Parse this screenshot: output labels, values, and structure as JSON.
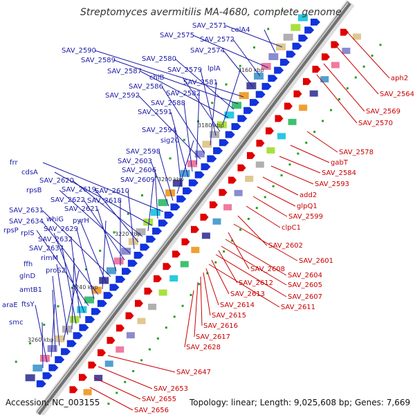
{
  "title": "Streptomyces avermitilis MA-4680, complete genome",
  "accession": "Accession: NC_003155",
  "topology": "Topology: linear; Length: 9,025,608 bp; Genes: 7,669",
  "ticks": [
    "3160 kbp",
    "3180 kbp",
    "3200 kbp",
    "3220 kbp",
    "3240 kbp",
    "3260 kbp"
  ],
  "left_labels": [
    "SAV_2571",
    "celA4",
    "SAV_2575",
    "SAV_2572",
    "SAV_2574",
    "SAV_2590",
    "SAV_2589",
    "SAV_2580",
    "SAV_2587",
    "lplA",
    "chiB",
    "SAV_2579",
    "SAV_2581",
    "SAV_2586",
    "SAV_2592",
    "SAV_2582",
    "SAV_2588",
    "SAV_2591",
    "SAV_2594",
    "sig20",
    "SAV_2598",
    "SAV_2603",
    "frr",
    "SAV_2606",
    "cdsA",
    "SAV_2609",
    "SAV_2620",
    "SAV_2619",
    "SAV_2610",
    "rpsB",
    "SAV_2622",
    "SAV_2618",
    "SAV_2621",
    "SAV_2631",
    "whiG",
    "pyrH",
    "SAV_2634",
    "SAV_2629",
    "rpsP",
    "rplS",
    "SAV_2632",
    "SAV_2637",
    "rimM",
    "ffh",
    "proS2",
    "glnD",
    "amtB1",
    "ftsY",
    "araE",
    "smc"
  ],
  "right_labels": [
    "aph2",
    "SAV_2564",
    "SAV_2569",
    "SAV_2570",
    "SAV_2578",
    "gabT",
    "SAV_2584",
    "SAV_2593",
    "add2",
    "glpQ1",
    "SAV_2599",
    "clpC1",
    "SAV_2602",
    "SAV_2601",
    "SAV_2608",
    "SAV_2604",
    "SAV_2605",
    "SAV_2612",
    "SAV_2607",
    "SAV_2613",
    "SAV_2611",
    "SAV_2614",
    "SAV_2615",
    "SAV_2616",
    "SAV_2617",
    "SAV_2628",
    "SAV_2647",
    "SAV_2653",
    "SAV_2655",
    "SAV_2656"
  ],
  "colors": {
    "forward": "#1133dd",
    "reverse": "#e00000",
    "left_line": "#1a1aa6",
    "right_line": "#c80000",
    "feature_green": "#22a022"
  }
}
